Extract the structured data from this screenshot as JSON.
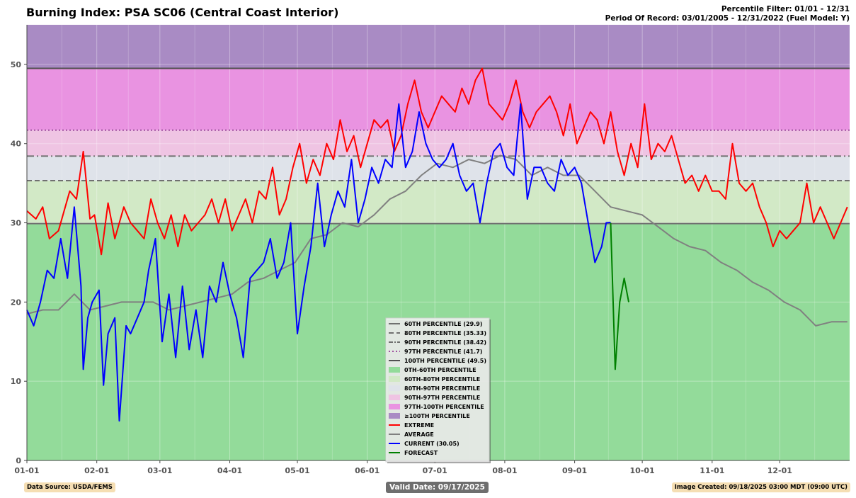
{
  "title": "Burning Index: PSA SC06 (Central Coast Interior)",
  "filter_line1": "Percentile Filter: 01/01 - 12/31",
  "filter_line2": "Period Of Record: 03/01/2005 - 12/31/2022 (Fuel Model: Y)",
  "data_source": "Data Source: USDA/FEMS",
  "valid_date": "Valid Date: 09/17/2025",
  "image_created": "Image Created: 09/18/2025 03:00 MDT (09:00 UTC)",
  "chart_data": {
    "type": "line",
    "title": "Burning Index: PSA SC06 (Central Coast Interior)",
    "xlabel": "",
    "ylabel": "",
    "ylim": [
      0,
      55
    ],
    "yticks": [
      0,
      10,
      20,
      30,
      40,
      50
    ],
    "xlim": [
      1,
      366
    ],
    "month_ticks": [
      {
        "label": "01-01",
        "day": 1
      },
      {
        "label": "02-01",
        "day": 32
      },
      {
        "label": "03-01",
        "day": 60
      },
      {
        "label": "04-01",
        "day": 91
      },
      {
        "label": "05-01",
        "day": 121
      },
      {
        "label": "06-01",
        "day": 152
      },
      {
        "label": "07-01",
        "day": 182
      },
      {
        "label": "08-01",
        "day": 213
      },
      {
        "label": "09-01",
        "day": 244
      },
      {
        "label": "10-01",
        "day": 274
      },
      {
        "label": "11-01",
        "day": 305
      },
      {
        "label": "12-01",
        "day": 335
      }
    ],
    "grid": true,
    "legend_position": "lower-center",
    "percentiles": [
      {
        "label": "60TH PERCENTILE (29.9)",
        "value": 29.9,
        "style": "solid",
        "color": "#707070"
      },
      {
        "label": "80TH PERCENTILE (35.33)",
        "value": 35.33,
        "style": "dashed",
        "color": "#707070"
      },
      {
        "label": "90TH PERCENTILE (38.42)",
        "value": 38.42,
        "style": "dashdot",
        "color": "#707070"
      },
      {
        "label": "97TH PERCENTILE (41.7)",
        "value": 41.7,
        "style": "dotted",
        "color": "#a050a0"
      },
      {
        "label": "100TH PERCENTILE (49.5)",
        "value": 49.5,
        "style": "solid",
        "color": "#505050"
      }
    ],
    "bands": [
      {
        "label": "0TH-60TH PERCENTILE",
        "from": 0,
        "to": 29.9,
        "color": "#93db9a"
      },
      {
        "label": "60TH-80TH PERCENTILE",
        "from": 29.9,
        "to": 35.33,
        "color": "#d2e9c6"
      },
      {
        "label": "80TH-90TH PERCENTILE",
        "from": 35.33,
        "to": 38.42,
        "color": "#dfe3ea"
      },
      {
        "label": "90TH-97TH PERCENTILE",
        "from": 38.42,
        "to": 41.7,
        "color": "#efc4e3"
      },
      {
        "label": "97TH-100TH PERCENTILE",
        "from": 41.7,
        "to": 49.5,
        "color": "#e993e1"
      },
      {
        "label": "≥100TH PERCENTILE",
        "from": 49.5,
        "to": 55,
        "color": "#a98bc4"
      }
    ],
    "series": [
      {
        "name": "EXTREME",
        "color": "#ff0000",
        "x": [
          1,
          5,
          8,
          11,
          15,
          20,
          23,
          26,
          29,
          31,
          34,
          37,
          40,
          44,
          47,
          50,
          53,
          56,
          59,
          62,
          65,
          68,
          71,
          74,
          77,
          80,
          83,
          86,
          89,
          92,
          95,
          98,
          101,
          104,
          107,
          110,
          113,
          116,
          119,
          122,
          125,
          128,
          131,
          134,
          137,
          140,
          143,
          146,
          149,
          152,
          155,
          158,
          161,
          164,
          167,
          170,
          173,
          176,
          179,
          182,
          185,
          188,
          191,
          194,
          197,
          200,
          203,
          206,
          209,
          212,
          215,
          218,
          221,
          224,
          227,
          230,
          233,
          236,
          239,
          242,
          245,
          248,
          251,
          254,
          257,
          260,
          263,
          266,
          269,
          272,
          275,
          278,
          281,
          284,
          287,
          290,
          293,
          296,
          299,
          302,
          305,
          308,
          311,
          314,
          317,
          320,
          323,
          326,
          329,
          332,
          335,
          338,
          341,
          344,
          347,
          350,
          353,
          356,
          359,
          362,
          365
        ],
        "y": [
          31.5,
          30.5,
          32,
          28,
          29,
          34,
          33,
          39,
          30.5,
          31,
          26,
          32.5,
          28,
          32,
          30,
          29,
          28,
          33,
          30,
          28,
          31,
          27,
          31,
          29,
          30,
          31,
          33,
          30,
          33,
          29,
          31,
          33,
          30,
          34,
          33,
          37,
          31,
          33,
          37,
          40,
          35,
          38,
          36,
          40,
          38,
          43,
          39,
          41,
          37,
          40,
          43,
          42,
          43,
          39,
          41,
          45,
          48,
          44,
          42,
          44,
          46,
          45,
          44,
          47,
          45,
          48,
          49.5,
          45,
          44,
          43,
          45,
          48,
          44,
          42,
          44,
          45,
          46,
          44,
          41,
          45,
          40,
          42,
          44,
          43,
          40,
          44,
          39,
          36,
          40,
          37,
          45,
          38,
          40,
          39,
          41,
          38,
          35,
          36,
          34,
          36,
          34,
          34,
          33,
          40,
          35,
          34,
          35,
          32,
          30,
          27,
          29,
          28,
          29,
          30,
          35,
          30,
          32,
          30,
          28,
          30,
          32
        ]
      },
      {
        "name": "AVERAGE",
        "color": "#808080",
        "x": [
          1,
          8,
          15,
          22,
          29,
          36,
          43,
          50,
          57,
          64,
          71,
          78,
          85,
          92,
          99,
          106,
          113,
          120,
          127,
          134,
          141,
          148,
          155,
          162,
          169,
          176,
          183,
          190,
          197,
          204,
          211,
          218,
          225,
          232,
          239,
          246,
          253,
          260,
          267,
          274,
          281,
          288,
          295,
          302,
          309,
          316,
          323,
          330,
          337,
          344,
          351,
          358,
          365
        ],
        "y": [
          18.5,
          19,
          19,
          21,
          19,
          19.5,
          20,
          20,
          20,
          19,
          19.5,
          20,
          20.5,
          21,
          22.5,
          23,
          24,
          25,
          28,
          28.5,
          30,
          29.5,
          31,
          33,
          34,
          36,
          37.5,
          37,
          38,
          37.5,
          38.5,
          38,
          36,
          37,
          36,
          36,
          34,
          32,
          31.5,
          31,
          29.5,
          28,
          27,
          26.5,
          25,
          24,
          22.5,
          21.5,
          20,
          19,
          17,
          17.5,
          17.5
        ]
      },
      {
        "name": "CURRENT (30.05)",
        "color": "#0000ff",
        "x": [
          1,
          4,
          7,
          10,
          13,
          16,
          19,
          22,
          25,
          26,
          28,
          30,
          33,
          35,
          37,
          40,
          42,
          45,
          47,
          50,
          53,
          55,
          58,
          61,
          64,
          67,
          70,
          73,
          76,
          79,
          82,
          85,
          88,
          91,
          94,
          97,
          100,
          103,
          106,
          109,
          112,
          115,
          118,
          121,
          124,
          127,
          130,
          133,
          136,
          139,
          142,
          145,
          148,
          151,
          154,
          157,
          160,
          163,
          166,
          169,
          172,
          175,
          178,
          181,
          184,
          187,
          190,
          193,
          196,
          199,
          202,
          205,
          208,
          211,
          214,
          217,
          220,
          223,
          226,
          229,
          232,
          235,
          238,
          241,
          244,
          247,
          250,
          253,
          256,
          258,
          260
        ],
        "y": [
          19,
          17,
          20,
          24,
          23,
          28,
          23,
          32,
          22,
          11.5,
          18,
          20,
          21.5,
          9.5,
          16,
          18,
          5,
          17,
          16,
          18,
          20,
          24,
          28,
          15,
          21,
          13,
          22,
          14,
          19,
          13,
          22,
          20,
          25,
          21,
          18,
          13,
          23,
          24,
          25,
          28,
          23,
          25,
          30,
          16,
          22,
          27,
          35,
          27,
          31,
          34,
          32,
          38,
          30,
          33,
          37,
          35,
          38,
          37,
          45,
          37,
          39,
          44,
          40,
          38,
          37,
          38,
          40,
          36,
          34,
          35,
          30,
          35,
          39,
          40,
          37,
          36,
          45,
          33,
          37,
          37,
          35,
          34,
          38,
          36,
          37,
          35,
          30,
          25,
          27,
          30,
          30.05
        ]
      },
      {
        "name": "FORECAST",
        "color": "#008000",
        "x": [
          260,
          262,
          264,
          266,
          268
        ],
        "y": [
          30,
          11.5,
          20,
          23,
          20
        ]
      }
    ]
  }
}
